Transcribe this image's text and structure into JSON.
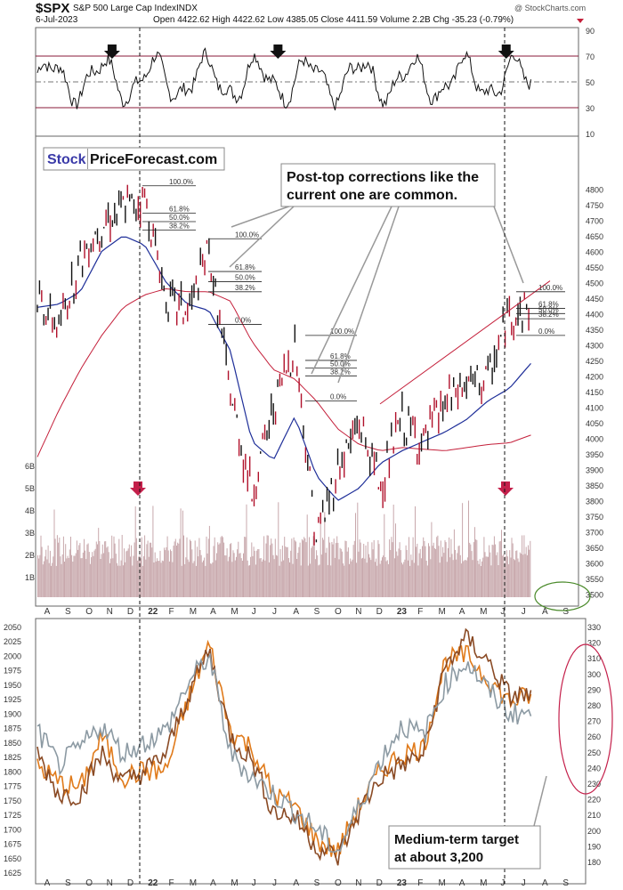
{
  "header": {
    "symbol": "$SPX",
    "name": "S&P 500 Large Cap Index",
    "exchange": "INDX",
    "date": "6-Jul-2023",
    "ohlc": "Open 4422.62  High 4422.62  Low 4385.05  Close 4411.59  Volume 2.2B  Chg -35.23 (-0.79%)",
    "watermark": "@ StockCharts.com"
  },
  "brand": {
    "part1": "Stock",
    "part2": "PriceForecast.com"
  },
  "annotations": {
    "top_callout_line1": "Post-top corrections like the",
    "top_callout_line2": "current one are common.",
    "bottom_callout_line1": "Medium-term target",
    "bottom_callout_line2": "at about 3,200"
  },
  "colors": {
    "price_up": "#111111",
    "price_down": "#b0102a",
    "ma_short": "#1f2f99",
    "ma_long": "#c41f3a",
    "volume_bar": "#c8a8ac",
    "rsi_line": "#111111",
    "gold": "#e07a1a",
    "silver": "#8c9aa3",
    "bronze": "#8a4a24",
    "ellipse_green": "#4a8a2a",
    "ellipse_red": "#c41f4a"
  },
  "chart_data": [
    {
      "type": "line",
      "panel": "RSI",
      "y_ticks": [
        "90",
        "70",
        "50",
        "30",
        "10"
      ],
      "ylim": [
        10,
        90
      ],
      "reference_lines": [
        70,
        50,
        30
      ],
      "peak_markers": [
        "Nov 2021",
        "Apr 2022",
        "Jun 2023"
      ]
    },
    {
      "type": "line",
      "panel": "price",
      "x_ticks": [
        "A",
        "S",
        "O",
        "N",
        "D",
        "22",
        "F",
        "M",
        "A",
        "M",
        "J",
        "J",
        "A",
        "S",
        "O",
        "N",
        "D",
        "23",
        "F",
        "M",
        "A",
        "M",
        "J",
        "J",
        "A",
        "S"
      ],
      "y_ticks": [
        "4800",
        "4750",
        "4700",
        "4650",
        "4600",
        "4550",
        "4500",
        "4450",
        "4400",
        "4350",
        "4300",
        "4250",
        "4200",
        "4150",
        "4100",
        "4050",
        "4000",
        "3950",
        "3900",
        "3850",
        "3800",
        "3750",
        "3700",
        "3650",
        "3600",
        "3550",
        "3500"
      ],
      "ylim": [
        3490,
        4815
      ],
      "price_series": {
        "months": [
          0,
          1,
          2,
          3,
          4,
          5,
          6,
          7,
          8,
          9,
          10,
          11,
          12,
          13,
          14,
          15,
          16,
          17,
          18,
          19,
          20,
          21,
          22,
          23
        ],
        "close": [
          4460,
          4350,
          4580,
          4690,
          4740,
          4770,
          4450,
          4400,
          4600,
          4140,
          3820,
          4100,
          4300,
          3680,
          3900,
          4050,
          3850,
          4060,
          3980,
          4110,
          4170,
          4190,
          4400,
          4420
        ]
      },
      "ma_short_series": [
        4420,
        4430,
        4470,
        4600,
        4650,
        4620,
        4500,
        4430,
        4410,
        4280,
        3990,
        3930,
        4070,
        3880,
        3800,
        3840,
        3920,
        3960,
        3990,
        4020,
        4060,
        4120,
        4160,
        4240
      ],
      "ma_long_series": [
        3940,
        4090,
        4220,
        4330,
        4420,
        4460,
        4480,
        4470,
        4470,
        4440,
        4310,
        4220,
        4190,
        4120,
        4030,
        3980,
        3960,
        3970,
        3965,
        3960,
        3970,
        3980,
        3985,
        4010
      ],
      "fib_sets": [
        {
          "labels": [
            "100.0%",
            "61.8%",
            "50.0%",
            "38.2%"
          ]
        },
        {
          "labels": [
            "100.0%",
            "61.8%",
            "50.0%",
            "38.2%",
            "0.0%"
          ]
        },
        {
          "labels": [
            "100.0%",
            "61.8%",
            "50.0%",
            "38.2%",
            "0.0%"
          ]
        },
        {
          "labels": [
            "100.0%",
            "61.8%",
            "50.0%",
            "38.2%",
            "0.0%"
          ]
        }
      ],
      "volume_ticks": [
        "6B",
        "5B",
        "4B",
        "3B",
        "2B",
        "1B"
      ]
    },
    {
      "type": "line",
      "panel": "metals",
      "left_ticks": [
        "2050",
        "2025",
        "2000",
        "1975",
        "1950",
        "1925",
        "1900",
        "1875",
        "1850",
        "1825",
        "1800",
        "1775",
        "1750",
        "1725",
        "1700",
        "1675",
        "1650",
        "1625"
      ],
      "right_ticks": [
        "330",
        "320",
        "310",
        "300",
        "290",
        "280",
        "270",
        "260",
        "250",
        "240",
        "230",
        "220",
        "210",
        "200",
        "190",
        "180"
      ],
      "x_ticks": [
        "A",
        "S",
        "O",
        "N",
        "D",
        "22",
        "F",
        "M",
        "A",
        "M",
        "J",
        "J",
        "A",
        "S",
        "O",
        "N",
        "D",
        "23",
        "F",
        "M",
        "A",
        "M",
        "J",
        "J",
        "A",
        "S"
      ],
      "series": [
        {
          "values": [
            1810,
            1780,
            1770,
            1860,
            1790,
            1800,
            1800,
            1920,
            2020,
            1870,
            1840,
            1760,
            1740,
            1680,
            1660,
            1740,
            1800,
            1830,
            1840,
            1990,
            2000,
            1960,
            1920,
            1930
          ]
        },
        {
          "values": [
            1830,
            1760,
            1760,
            1830,
            1780,
            1800,
            1830,
            1930,
            2010,
            1860,
            1820,
            1730,
            1720,
            1670,
            1650,
            1730,
            1790,
            1810,
            1830,
            1980,
            2030,
            1990,
            1930,
            1930
          ]
        },
        {
          "values": [
            1870,
            1810,
            1840,
            1880,
            1830,
            1850,
            1870,
            1950,
            2000,
            1830,
            1790,
            1760,
            1730,
            1700,
            1660,
            1740,
            1820,
            1880,
            1860,
            1950,
            1990,
            1940,
            1900,
            1900
          ]
        }
      ]
    }
  ]
}
